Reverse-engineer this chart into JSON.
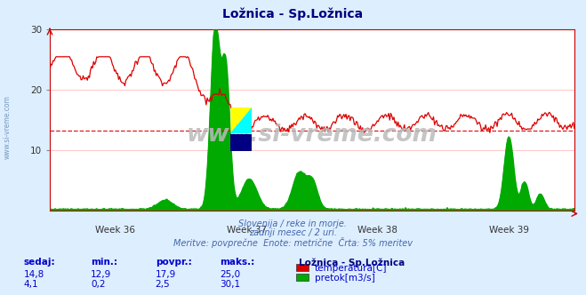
{
  "title": "Ložnica - Sp.Ložnica",
  "title_color": "#000080",
  "bg_color": "#ddeeff",
  "plot_bg_color": "#ffffff",
  "grid_color": "#ffb0b0",
  "xlabel_weeks": [
    "Week 36",
    "Week 37",
    "Week 38",
    "Week 39"
  ],
  "ylim": [
    0,
    30
  ],
  "yticks": [
    10,
    20,
    30
  ],
  "temp_color": "#dd0000",
  "flow_color": "#00aa00",
  "avg_line_color": "#dd0000",
  "avg_line_value": 13.3,
  "watermark": "www.si-vreme.com",
  "subtitle1": "Slovenija / reke in morje.",
  "subtitle2": "zadnji mesec / 2 uri.",
  "subtitle3": "Meritve: povprečne  Enote: metrične  Črta: 5% meritev",
  "subtitle_color": "#4466aa",
  "legend_title": "Ložnica - Sp.Ložnica",
  "legend_title_color": "#000080",
  "table_headers": [
    "sedaj:",
    "min.:",
    "povpr.:",
    "maks.:"
  ],
  "table_row1": [
    "14,8",
    "12,9",
    "17,9",
    "25,0"
  ],
  "table_row2": [
    "4,1",
    "0,2",
    "2,5",
    "30,1"
  ],
  "table_color": "#0000cc",
  "label_temp": "temperatura[C]",
  "label_flow": "pretok[m3/s]",
  "n_points": 504
}
